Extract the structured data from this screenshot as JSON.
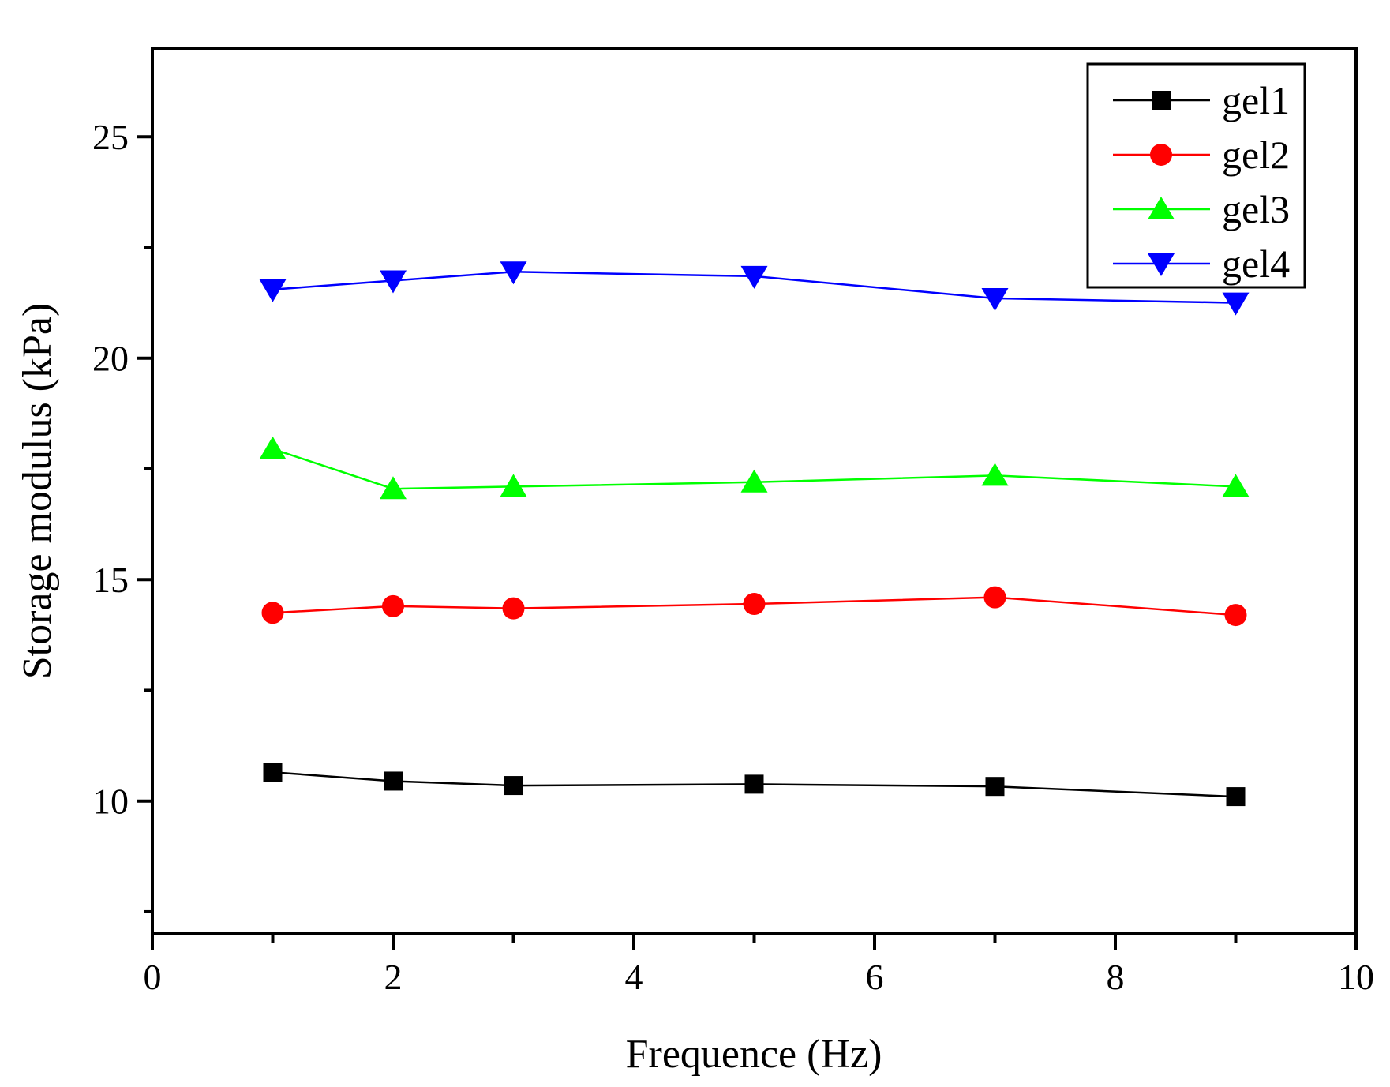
{
  "chart_data": {
    "type": "line",
    "title": "",
    "xlabel": "Frequence (Hz)",
    "ylabel": "Storage modulus (kPa)",
    "xlim": [
      0,
      10
    ],
    "ylim": [
      7,
      27
    ],
    "x_ticks": [
      0,
      2,
      4,
      6,
      8,
      10
    ],
    "x_tick_labels": [
      "0",
      "2",
      "4",
      "6",
      "8",
      "10"
    ],
    "y_ticks": [
      10,
      15,
      20,
      25
    ],
    "y_tick_labels": [
      "10",
      "15",
      "20",
      "25"
    ],
    "grid": false,
    "legend_position": "top-right",
    "x": [
      1,
      2,
      3,
      5,
      7,
      9
    ],
    "series": [
      {
        "name": "gel1",
        "color": "#000000",
        "marker": "square",
        "values": [
          10.65,
          10.45,
          10.35,
          10.38,
          10.33,
          10.1
        ]
      },
      {
        "name": "gel2",
        "color": "#ff0000",
        "marker": "circle",
        "values": [
          14.25,
          14.4,
          14.35,
          14.45,
          14.6,
          14.2
        ]
      },
      {
        "name": "gel3",
        "color": "#00ff00",
        "marker": "triangle-up",
        "values": [
          17.95,
          17.05,
          17.1,
          17.2,
          17.35,
          17.1
        ]
      },
      {
        "name": "gel4",
        "color": "#0000ff",
        "marker": "triangle-down",
        "values": [
          21.55,
          21.75,
          21.95,
          21.85,
          21.35,
          21.25
        ]
      }
    ]
  }
}
